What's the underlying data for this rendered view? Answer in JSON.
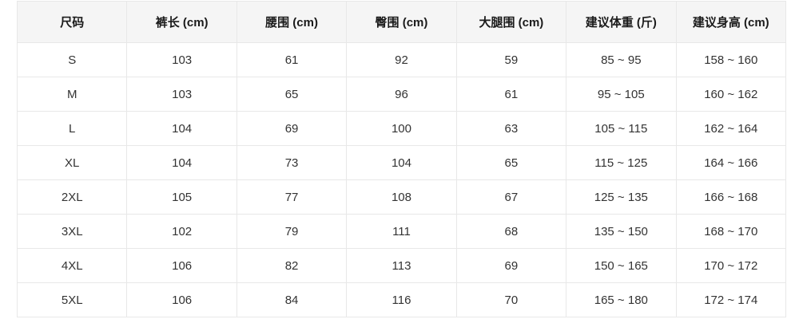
{
  "colors": {
    "header_bg": "#f5f5f5",
    "header_text": "#1a1a1a",
    "body_text": "#333333",
    "border": "#e8e8e8",
    "page_bg": "#ffffff"
  },
  "chart_data": {
    "type": "table",
    "title": "",
    "columns": [
      "尺码",
      "裤长 (cm)",
      "腰围 (cm)",
      "臀围 (cm)",
      "大腿围 (cm)",
      "建议体重 (斤)",
      "建议身高 (cm)"
    ],
    "rows": [
      [
        "S",
        "103",
        "61",
        "92",
        "59",
        "85 ~ 95",
        "158 ~ 160"
      ],
      [
        "M",
        "103",
        "65",
        "96",
        "61",
        "95 ~ 105",
        "160 ~ 162"
      ],
      [
        "L",
        "104",
        "69",
        "100",
        "63",
        "105 ~ 115",
        "162 ~ 164"
      ],
      [
        "XL",
        "104",
        "73",
        "104",
        "65",
        "115 ~ 125",
        "164 ~ 166"
      ],
      [
        "2XL",
        "105",
        "77",
        "108",
        "67",
        "125 ~ 135",
        "166 ~ 168"
      ],
      [
        "3XL",
        "102",
        "79",
        "111",
        "68",
        "135 ~ 150",
        "168 ~ 170"
      ],
      [
        "4XL",
        "106",
        "82",
        "113",
        "69",
        "150 ~ 165",
        "170 ~ 172"
      ],
      [
        "5XL",
        "106",
        "84",
        "116",
        "70",
        "165 ~ 180",
        "172 ~ 174"
      ]
    ]
  }
}
